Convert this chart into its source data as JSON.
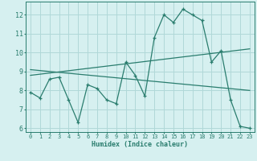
{
  "xlabel": "Humidex (Indice chaleur)",
  "background_color": "#d6f0f0",
  "grid_color": "#b0d8d8",
  "line_color": "#2a7d6e",
  "xlim": [
    -0.5,
    23.5
  ],
  "ylim": [
    5.8,
    12.7
  ],
  "yticks": [
    6,
    7,
    8,
    9,
    10,
    11,
    12
  ],
  "xticks": [
    0,
    1,
    2,
    3,
    4,
    5,
    6,
    7,
    8,
    9,
    10,
    11,
    12,
    13,
    14,
    15,
    16,
    17,
    18,
    19,
    20,
    21,
    22,
    23
  ],
  "line1_x": [
    0,
    1,
    2,
    3,
    4,
    5,
    6,
    7,
    8,
    9,
    10,
    11,
    12,
    13,
    14,
    15,
    16,
    17,
    18,
    19,
    20,
    21,
    22,
    23
  ],
  "line1_y": [
    7.9,
    7.6,
    8.6,
    8.7,
    7.5,
    6.3,
    8.3,
    8.1,
    7.5,
    7.3,
    9.5,
    8.8,
    7.7,
    10.8,
    12.0,
    11.6,
    12.3,
    12.0,
    11.7,
    9.5,
    10.1,
    7.5,
    6.1,
    6.0
  ],
  "line2_x": [
    0,
    23
  ],
  "line2_y": [
    8.8,
    10.2
  ],
  "line3_x": [
    0,
    23
  ],
  "line3_y": [
    9.1,
    8.0
  ]
}
